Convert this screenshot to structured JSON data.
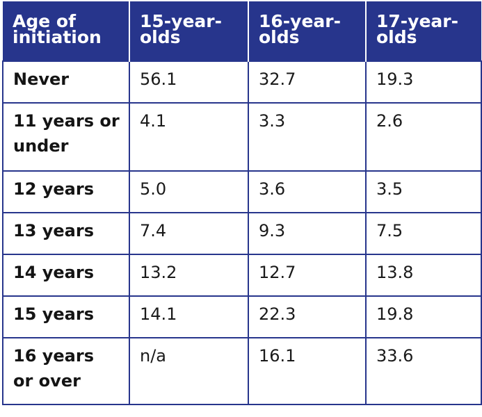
{
  "table": {
    "headers": [
      "Age of initiation",
      "15-year-olds",
      "16-year-olds",
      "17-year-olds"
    ],
    "header_lines": [
      [
        "Age of",
        "initiation"
      ],
      [
        "15-year-",
        "olds"
      ],
      [
        "16-year-",
        "olds"
      ],
      [
        "17-year-",
        "olds"
      ]
    ],
    "rows": [
      {
        "label_lines": [
          "Never"
        ],
        "values": [
          "56.1",
          "32.7",
          "19.3"
        ]
      },
      {
        "label_lines": [
          "11 years or",
          "under"
        ],
        "values": [
          "4.1",
          "3.3",
          "2.6"
        ]
      },
      {
        "label_lines": [
          "12 years"
        ],
        "values": [
          "5.0",
          "3.6",
          "3.5"
        ]
      },
      {
        "label_lines": [
          "13 years"
        ],
        "values": [
          "7.4",
          "9.3",
          "7.5"
        ]
      },
      {
        "label_lines": [
          "14 years"
        ],
        "values": [
          "13.2",
          "12.7",
          "13.8"
        ]
      },
      {
        "label_lines": [
          "15 years"
        ],
        "values": [
          "14.1",
          "22.3",
          "19.8"
        ]
      },
      {
        "label_lines": [
          "16 years",
          "or over"
        ],
        "values": [
          "n/a",
          "16.1",
          "33.6"
        ]
      }
    ]
  },
  "colors": {
    "header_background": "#27358c",
    "header_text": "#ffffff",
    "border": "#27358c",
    "body_text": "#1a1a1a"
  }
}
